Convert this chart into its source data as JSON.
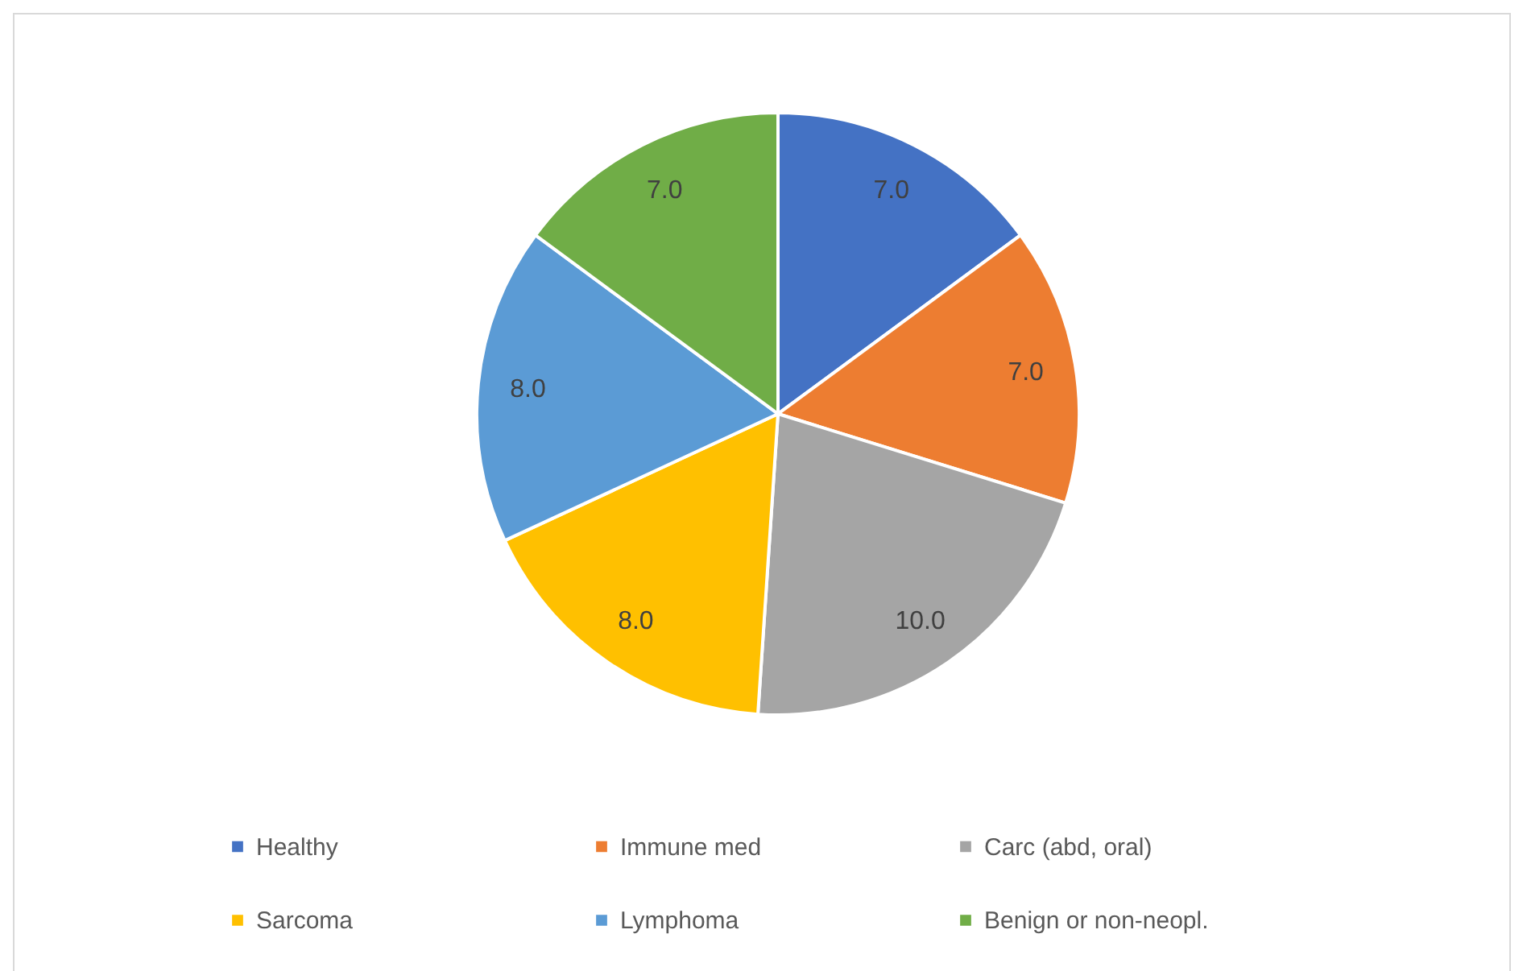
{
  "chart_data": {
    "type": "pie",
    "categories": [
      "Healthy",
      "Immune med",
      "Carc (abd, oral)",
      "Sarcoma",
      "Lymphoma",
      "Benign or non-neopl."
    ],
    "values": [
      7.0,
      7.0,
      10.0,
      8.0,
      8.0,
      7.0
    ],
    "colors": [
      "#4472c4",
      "#ed7d31",
      "#a5a5a5",
      "#ffc000",
      "#5b9bd5",
      "#70ad47"
    ],
    "value_labels": [
      "7.0",
      "7.0",
      "10.0",
      "8.0",
      "8.0",
      "7.0"
    ],
    "legend": "bottom"
  }
}
